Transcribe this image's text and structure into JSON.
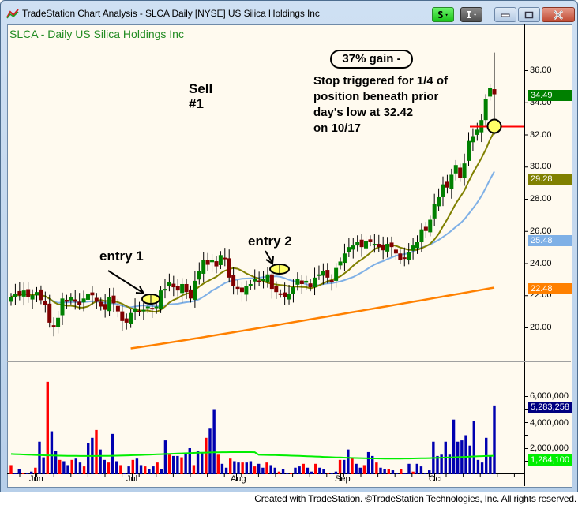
{
  "window": {
    "title": "TradeStation Chart Analysis - SLCA Daily [NYSE] US Silica Holdings Inc",
    "buttons": {
      "s_label": "S",
      "i_label": "I",
      "caret": "▾"
    }
  },
  "chart": {
    "symbol_title": "SLCA - Daily  US Silica Holdings Inc",
    "price_axis": [
      "36.00",
      "34.00",
      "32.00",
      "30.00",
      "28.00",
      "26.00",
      "24.00",
      "22.00",
      "20.00"
    ],
    "volume_axis": [
      "6,000,000",
      "4,000,000",
      "2,000,000"
    ],
    "months": [
      "Jun",
      "Jul",
      "Aug",
      "Sep",
      "Oct"
    ],
    "price_labels": {
      "last": "34.49",
      "ma_short": "29.28",
      "ma_mid": "25.48",
      "ma_long": "22.48",
      "volume_last": "5,283,258",
      "volume_avg": "1,284,100"
    },
    "colors": {
      "up": "#008000",
      "down": "#800000",
      "ma_short": "#808000",
      "ma_mid": "#7fb0e6",
      "ma_long": "#ff8000",
      "vol_up": "#0000b0",
      "vol_down": "#ff0000",
      "vol_avg": "#00ee00",
      "stop_line": "#ff0000",
      "marker_fill": "#ffff66"
    }
  },
  "annotations": {
    "gain": "37% gain -",
    "stop_line1": "Stop triggered for 1/4 of",
    "stop_line2": "position beneath prior",
    "stop_line3": "day's low at 32.42",
    "stop_line4": "on 10/17",
    "sell_line1": "Sell",
    "sell_line2": "#1",
    "entry1": "entry 1",
    "entry2": "entry 2"
  },
  "footer": "Created with TradeStation. ©TradeStation Technologies, Inc. All rights reserved.",
  "chart_data": {
    "type": "candlestick",
    "title": "SLCA - Daily  US Silica Holdings Inc",
    "ylim": [
      18.5,
      37.5
    ],
    "x_months": [
      "Jun",
      "Jul",
      "Aug",
      "Sep",
      "Oct"
    ],
    "last_price": 34.49,
    "moving_averages": [
      {
        "name": "MA short",
        "last": 29.28
      },
      {
        "name": "MA mid",
        "last": 25.48
      },
      {
        "name": "MA long",
        "last": 22.48
      }
    ],
    "stop_level": 32.42,
    "volume_last": 5283258,
    "volume_avg": 1284100
  }
}
